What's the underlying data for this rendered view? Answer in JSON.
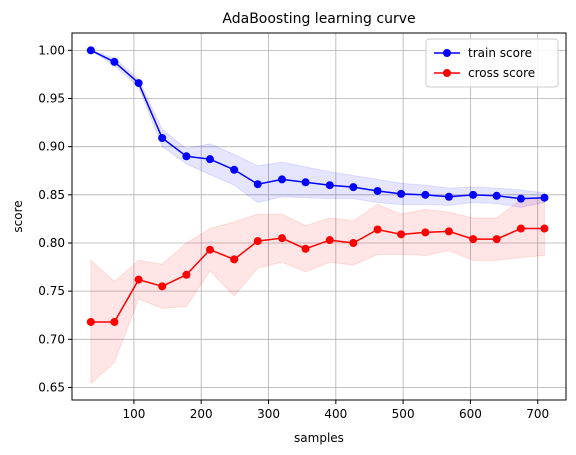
{
  "chart_data": {
    "type": "line",
    "title": "AdaBoosting learning curve",
    "xlabel": "samples",
    "ylabel": "score",
    "xlim": [
      8,
      742
    ],
    "ylim": [
      0.637,
      1.018
    ],
    "xticks": [
      100,
      200,
      300,
      400,
      500,
      600,
      700
    ],
    "yticks": [
      0.65,
      0.7,
      0.75,
      0.8,
      0.85,
      0.9,
      0.95,
      1.0
    ],
    "grid": true,
    "legend_position": "top-right",
    "x": [
      36,
      71,
      107,
      142,
      178,
      213,
      249,
      284,
      320,
      355,
      391,
      426,
      462,
      497,
      533,
      568,
      604,
      639,
      675,
      710
    ],
    "series": [
      {
        "name": "train score",
        "color": "#0000ff",
        "values": [
          1.0,
          0.988,
          0.966,
          0.909,
          0.89,
          0.887,
          0.876,
          0.861,
          0.866,
          0.863,
          0.86,
          0.858,
          0.854,
          0.851,
          0.85,
          0.848,
          0.85,
          0.849,
          0.846,
          0.847
        ],
        "band_upper": [
          1.0,
          0.992,
          0.97,
          0.918,
          0.898,
          0.903,
          0.892,
          0.88,
          0.884,
          0.879,
          0.874,
          0.87,
          0.866,
          0.862,
          0.86,
          0.857,
          0.858,
          0.857,
          0.855,
          0.852
        ],
        "band_lower": [
          1.0,
          0.984,
          0.962,
          0.9,
          0.882,
          0.871,
          0.86,
          0.842,
          0.848,
          0.847,
          0.846,
          0.846,
          0.842,
          0.84,
          0.84,
          0.839,
          0.842,
          0.841,
          0.837,
          0.842
        ]
      },
      {
        "name": "cross score",
        "color": "#ff0000",
        "values": [
          0.718,
          0.718,
          0.762,
          0.755,
          0.767,
          0.793,
          0.783,
          0.802,
          0.805,
          0.794,
          0.803,
          0.8,
          0.814,
          0.809,
          0.811,
          0.812,
          0.804,
          0.804,
          0.815,
          0.815
        ],
        "band_upper": [
          0.782,
          0.76,
          0.782,
          0.778,
          0.8,
          0.815,
          0.822,
          0.83,
          0.83,
          0.818,
          0.826,
          0.823,
          0.84,
          0.83,
          0.835,
          0.832,
          0.826,
          0.826,
          0.845,
          0.845
        ],
        "band_lower": [
          0.654,
          0.676,
          0.742,
          0.732,
          0.734,
          0.771,
          0.745,
          0.774,
          0.78,
          0.77,
          0.78,
          0.777,
          0.788,
          0.788,
          0.787,
          0.792,
          0.782,
          0.782,
          0.785,
          0.787
        ]
      }
    ]
  }
}
